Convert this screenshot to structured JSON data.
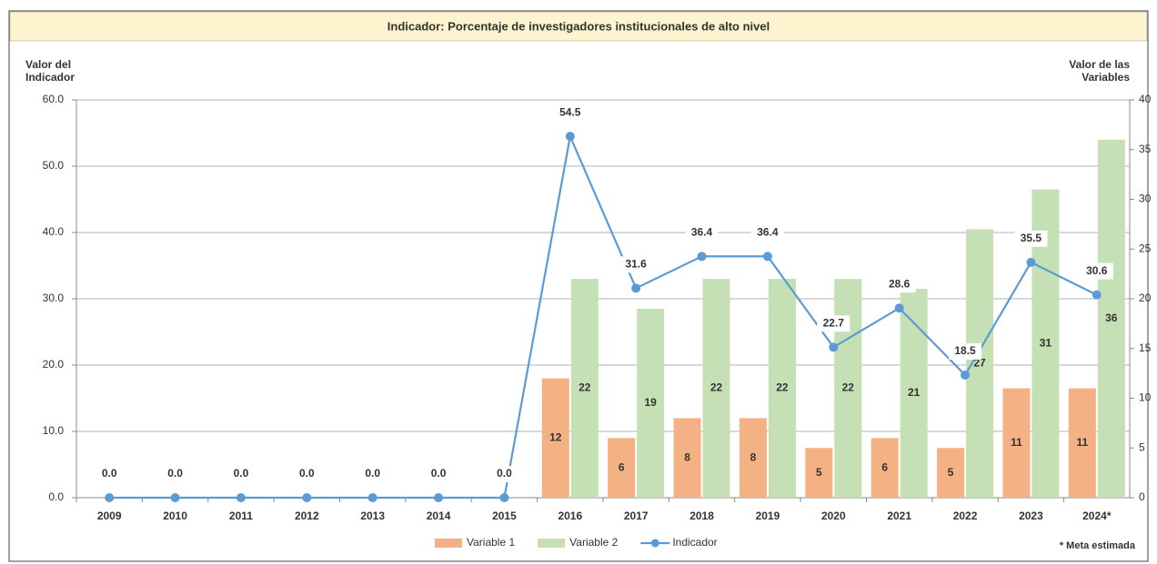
{
  "chart_data": {
    "type": "bar_line",
    "title": "Indicador: Porcentaje de investigadores institucionales de alto nivel",
    "y_label": "Valor del Indicador",
    "y2_label": "Valor de las Variables",
    "note": "* Meta estimada",
    "categories": [
      "2009",
      "2010",
      "2011",
      "2012",
      "2013",
      "2014",
      "2015",
      "2016",
      "2017",
      "2018",
      "2019",
      "2020",
      "2021",
      "2022",
      "2023",
      "2024*"
    ],
    "series": [
      {
        "name": "Variable 1",
        "type": "bar",
        "axis": "y2",
        "color": "#f4b183",
        "values": [
          null,
          null,
          null,
          null,
          null,
          null,
          null,
          12,
          6,
          8,
          8,
          5,
          6,
          5,
          11,
          11
        ]
      },
      {
        "name": "Variable 2",
        "type": "bar",
        "axis": "y2",
        "color": "#c5e0b4",
        "values": [
          null,
          null,
          null,
          null,
          null,
          null,
          null,
          22,
          19,
          22,
          22,
          22,
          21,
          27,
          31,
          36
        ]
      },
      {
        "name": "Indicador",
        "type": "line",
        "color": "#5b9bd5",
        "values": [
          0,
          0,
          0,
          0,
          0,
          0,
          0,
          54.5,
          31.6,
          36.4,
          36.4,
          22.7,
          28.6,
          18.5,
          35.5,
          30.6
        ],
        "value_labels": [
          "0.0",
          "0.0",
          "0.0",
          "0.0",
          "0.0",
          "0.0",
          "0.0",
          "54.5",
          "31.6",
          "36.4",
          "36.4",
          "22.7",
          "28.6",
          "18.5",
          "35.5",
          "30.6"
        ]
      }
    ],
    "ylim": [
      0,
      60
    ],
    "yticks": [
      {
        "value": 0,
        "label": "0.0"
      },
      {
        "value": 10,
        "label": "10.0"
      },
      {
        "value": 20,
        "label": "20.0"
      },
      {
        "value": 30,
        "label": "30.0"
      },
      {
        "value": 40,
        "label": "40.0"
      },
      {
        "value": 50,
        "label": "50.0"
      },
      {
        "value": 60,
        "label": "60.0"
      }
    ],
    "y2lim": [
      0,
      40
    ],
    "y2ticks": [
      0,
      5,
      10,
      15,
      20,
      25,
      30,
      35,
      40
    ],
    "grid": true
  }
}
